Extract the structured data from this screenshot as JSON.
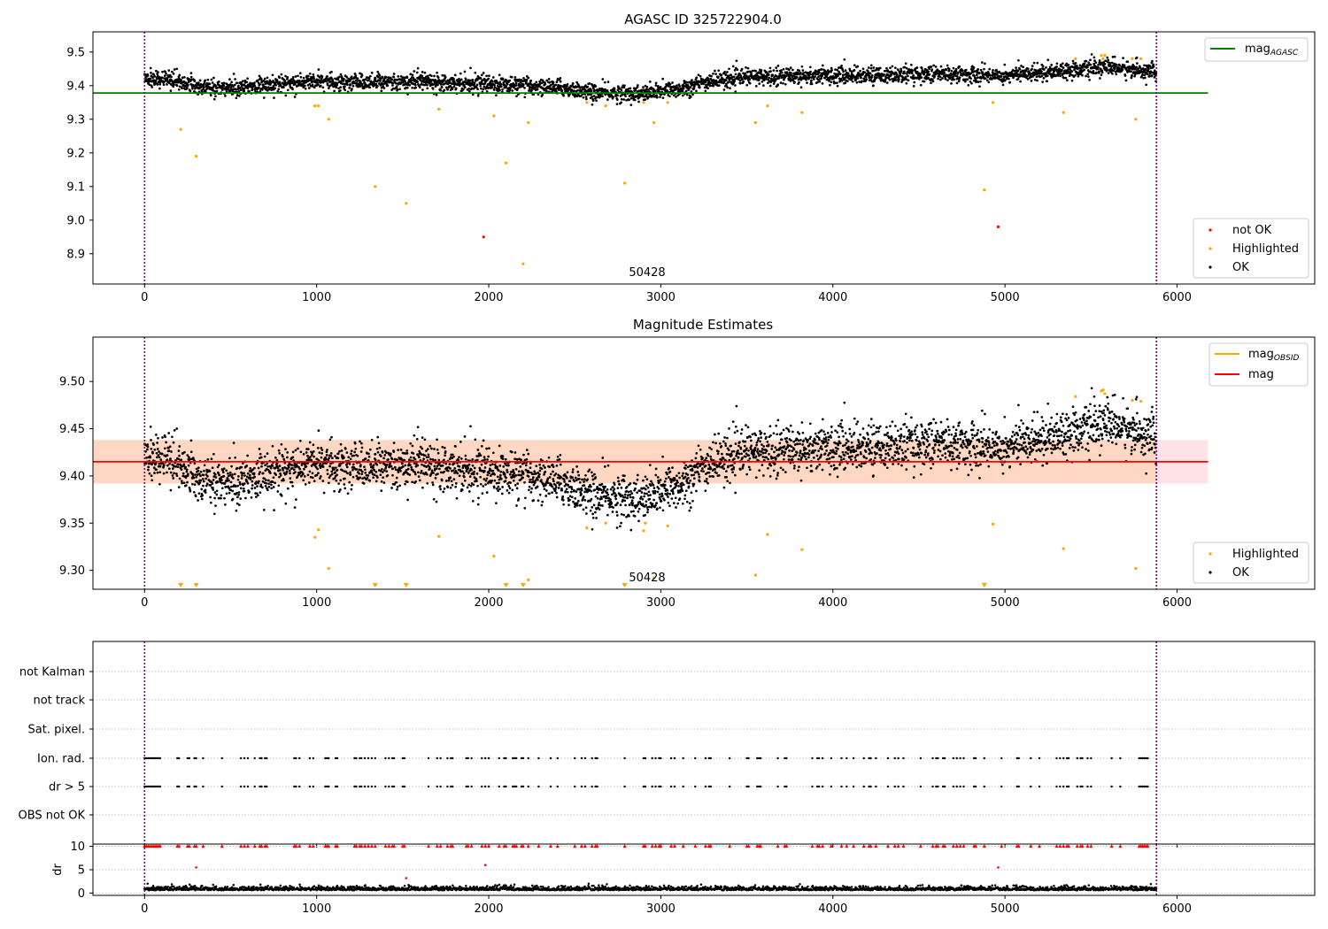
{
  "colors": {
    "ok": "#000000",
    "highlighted": "#ffa500",
    "not_ok": "#ff0000",
    "mag_agasc": "#008000",
    "mag": "#ff0000",
    "mag_obsid": "#ffa500",
    "band_inner": "#ffd7c2",
    "band_outer": "#ffe3e8",
    "boundary": "#800080",
    "grid": "#b0b0b0"
  },
  "chart_data": [
    {
      "id": "agasc",
      "type": "scatter",
      "title": "AGASC ID 325722904.0",
      "xlim": [
        -300,
        6800
      ],
      "ylim": [
        8.81,
        9.56
      ],
      "x_ticks": [
        0,
        1000,
        2000,
        3000,
        4000,
        5000,
        6000
      ],
      "y_ticks": [
        8.9,
        9.0,
        9.1,
        9.2,
        9.3,
        9.4,
        9.5
      ],
      "y_tick_labels": [
        "8.9",
        "9.0",
        "9.1",
        "9.2",
        "9.3",
        "9.4",
        "9.5"
      ],
      "obsid_label": {
        "text": "50428",
        "x": 2930
      },
      "vlines": [
        0,
        5880
      ],
      "hlines": [
        {
          "name": "mag_AGASC",
          "y": 9.378,
          "x0": -300,
          "x1": 6180
        }
      ],
      "legend_top": {
        "position": "top-right",
        "entries": [
          {
            "label": "mag",
            "sub": "AGASC",
            "kind": "line",
            "color_key": "mag_agasc"
          }
        ]
      },
      "legend_bottom": {
        "position": "bottom-right",
        "entries": [
          {
            "label": "not OK",
            "kind": "dot",
            "color_key": "not_ok"
          },
          {
            "label": "Highlighted",
            "kind": "dot",
            "color_key": "highlighted"
          },
          {
            "label": "OK",
            "kind": "dot",
            "color_key": "ok"
          }
        ]
      },
      "series": [
        {
          "name": "Highlighted",
          "kind": "points",
          "points": [
            [
              210,
              9.27
            ],
            [
              300,
              9.19
            ],
            [
              990,
              9.34
            ],
            [
              1010,
              9.34
            ],
            [
              1070,
              9.3
            ],
            [
              1340,
              9.1
            ],
            [
              1520,
              9.05
            ],
            [
              1710,
              9.33
            ],
            [
              2030,
              9.31
            ],
            [
              2100,
              9.17
            ],
            [
              2200,
              8.87
            ],
            [
              2230,
              9.29
            ],
            [
              2570,
              9.35
            ],
            [
              2680,
              9.34
            ],
            [
              2790,
              9.11
            ],
            [
              2900,
              9.35
            ],
            [
              2960,
              9.29
            ],
            [
              3040,
              9.35
            ],
            [
              3550,
              9.29
            ],
            [
              3620,
              9.34
            ],
            [
              3820,
              9.32
            ],
            [
              4880,
              9.09
            ],
            [
              4930,
              9.35
            ],
            [
              5340,
              9.32
            ],
            [
              5410,
              9.48
            ],
            [
              5560,
              9.49
            ],
            [
              5570,
              9.48
            ],
            [
              5580,
              9.49
            ],
            [
              5740,
              9.48
            ],
            [
              5760,
              9.3
            ],
            [
              5790,
              9.48
            ]
          ]
        },
        {
          "name": "not OK",
          "kind": "points",
          "points": [
            [
              1970,
              8.95
            ],
            [
              4960,
              8.98
            ]
          ]
        }
      ],
      "ok_series": {
        "mean_segments": [
          [
            0,
            9.425
          ],
          [
            200,
            9.41
          ],
          [
            400,
            9.39
          ],
          [
            800,
            9.405
          ],
          [
            1000,
            9.415
          ],
          [
            1300,
            9.41
          ],
          [
            1600,
            9.415
          ],
          [
            2000,
            9.405
          ],
          [
            2400,
            9.395
          ],
          [
            2600,
            9.38
          ],
          [
            2900,
            9.375
          ],
          [
            3100,
            9.39
          ],
          [
            3300,
            9.415
          ],
          [
            3500,
            9.425
          ],
          [
            3800,
            9.43
          ],
          [
            4200,
            9.43
          ],
          [
            4600,
            9.435
          ],
          [
            5000,
            9.43
          ],
          [
            5300,
            9.445
          ],
          [
            5600,
            9.455
          ],
          [
            5880,
            9.44
          ]
        ],
        "noise": 0.012
      }
    },
    {
      "id": "mag",
      "type": "scatter",
      "title": "Magnitude Estimates",
      "xlim": [
        -300,
        6800
      ],
      "ylim": [
        9.28,
        9.547
      ],
      "x_ticks": [
        0,
        1000,
        2000,
        3000,
        4000,
        5000,
        6000
      ],
      "y_ticks": [
        9.3,
        9.35,
        9.4,
        9.45,
        9.5
      ],
      "y_tick_labels": [
        "9.30",
        "9.35",
        "9.40",
        "9.45",
        "9.50"
      ],
      "obsid_label": {
        "text": "50428",
        "x": 2930
      },
      "vlines": [
        0,
        5880
      ],
      "hlines": [
        {
          "name": "mag",
          "y": 9.415,
          "x0": -300,
          "x1": 6180
        }
      ],
      "band": {
        "x0": -300,
        "x1": 6180,
        "outer": [
          9.392,
          9.438
        ],
        "inner": [
          9.392,
          9.438
        ]
      },
      "legend_top": {
        "position": "top-right",
        "entries": [
          {
            "label": "mag",
            "sub": "OBSID",
            "kind": "line",
            "color_key": "mag_obsid"
          },
          {
            "label": "mag",
            "kind": "line",
            "color_key": "mag"
          }
        ]
      },
      "legend_bottom": {
        "position": "bottom-right",
        "entries": [
          {
            "label": "Highlighted",
            "kind": "dot",
            "color_key": "highlighted"
          },
          {
            "label": "OK",
            "kind": "dot",
            "color_key": "ok"
          }
        ]
      },
      "series": [
        {
          "name": "Highlighted",
          "kind": "points",
          "points": [
            [
              990,
              9.335
            ],
            [
              1010,
              9.343
            ],
            [
              1070,
              9.302
            ],
            [
              1710,
              9.336
            ],
            [
              2030,
              9.315
            ],
            [
              2230,
              9.29
            ],
            [
              2570,
              9.345
            ],
            [
              2680,
              9.35
            ],
            [
              2900,
              9.342
            ],
            [
              2910,
              9.35
            ],
            [
              2960,
              9.292
            ],
            [
              3040,
              9.347
            ],
            [
              3550,
              9.295
            ],
            [
              3620,
              9.338
            ],
            [
              3820,
              9.322
            ],
            [
              4930,
              9.349
            ],
            [
              5340,
              9.323
            ],
            [
              5410,
              9.484
            ],
            [
              5560,
              9.49
            ],
            [
              5570,
              9.491
            ],
            [
              5580,
              9.487
            ],
            [
              5740,
              9.48
            ],
            [
              5760,
              9.302
            ],
            [
              5790,
              9.479
            ]
          ]
        },
        {
          "name": "Highlighted (below axis)",
          "kind": "triangles",
          "x": [
            210,
            300,
            1340,
            1520,
            2100,
            2200,
            2790,
            4880
          ]
        }
      ],
      "ok_series": {
        "mean_segments": [
          [
            0,
            9.425
          ],
          [
            200,
            9.41
          ],
          [
            400,
            9.39
          ],
          [
            800,
            9.405
          ],
          [
            1000,
            9.415
          ],
          [
            1300,
            9.41
          ],
          [
            1600,
            9.415
          ],
          [
            2000,
            9.405
          ],
          [
            2400,
            9.395
          ],
          [
            2600,
            9.38
          ],
          [
            2900,
            9.375
          ],
          [
            3100,
            9.39
          ],
          [
            3300,
            9.415
          ],
          [
            3500,
            9.425
          ],
          [
            3800,
            9.43
          ],
          [
            4200,
            9.43
          ],
          [
            4600,
            9.435
          ],
          [
            5000,
            9.43
          ],
          [
            5300,
            9.445
          ],
          [
            5600,
            9.455
          ],
          [
            5880,
            9.44
          ]
        ],
        "noise": 0.012
      }
    },
    {
      "id": "flags",
      "type": "scatter",
      "xlim": [
        -300,
        6800
      ],
      "x_ticks": [
        0,
        1000,
        2000,
        3000,
        4000,
        5000,
        6000
      ],
      "vlines": [
        0,
        5880
      ],
      "categories": [
        "not Kalman",
        "not track",
        "Sat. pixel.",
        "Ion. rad.",
        "dr > 5",
        "OBS not OK"
      ],
      "flag_x": [
        0,
        10,
        20,
        30,
        40,
        50,
        60,
        70,
        80,
        90,
        190,
        200,
        250,
        260,
        290,
        300,
        340,
        450,
        560,
        580,
        600,
        640,
        670,
        680,
        700,
        710,
        870,
        880,
        900,
        960,
        980,
        1050,
        1060,
        1070,
        1110,
        1120,
        1220,
        1230,
        1250,
        1260,
        1280,
        1300,
        1320,
        1340,
        1400,
        1420,
        1440,
        1450,
        1500,
        1510,
        1650,
        1700,
        1720,
        1760,
        1780,
        1790,
        1870,
        1880,
        1900,
        1960,
        1980,
        2000,
        2060,
        2090,
        2100,
        2140,
        2150,
        2160,
        2190,
        2200,
        2230,
        2290,
        2360,
        2400,
        2500,
        2540,
        2560,
        2600,
        2620,
        2630,
        2790,
        2900,
        2910,
        2950,
        2970,
        2990,
        3000,
        3060,
        3080,
        3130,
        3200,
        3260,
        3280,
        3290,
        3400,
        3500,
        3510,
        3560,
        3570,
        3580,
        3680,
        3720,
        3730,
        3880,
        3910,
        3920,
        3940,
        3990,
        4050,
        4080,
        4120,
        4180,
        4210,
        4220,
        4250,
        4320,
        4360,
        4380,
        4410,
        4510,
        4580,
        4600,
        4610,
        4640,
        4650,
        4700,
        4720,
        4740,
        4760,
        4820,
        4830,
        4880,
        4980,
        5070,
        5080,
        5150,
        5200,
        5300,
        5320,
        5340,
        5360,
        5370,
        5420,
        5440,
        5450,
        5480,
        5500,
        5620,
        5670,
        5780,
        5790,
        5800,
        5810,
        5820,
        5830
      ]
    },
    {
      "id": "dr",
      "type": "scatter",
      "ylabel": "dr",
      "xlim": [
        -300,
        6800
      ],
      "ylim": [
        -0.5,
        10.5
      ],
      "x_ticks": [
        0,
        1000,
        2000,
        3000,
        4000,
        5000,
        6000
      ],
      "x_tick_labels": [
        "0",
        "1000",
        "2000",
        "3000",
        "4000",
        "5000",
        "6000"
      ],
      "y_ticks": [
        0,
        5,
        10
      ],
      "y_tick_labels": [
        "0",
        "5",
        "10"
      ],
      "vlines": [
        0,
        5880
      ],
      "series": [
        {
          "name": "dr capped",
          "kind": "triangles-red",
          "y": 10
        },
        {
          "name": "dr outliers",
          "kind": "points",
          "points": [
            [
              300,
              5.5
            ],
            [
              1520,
              3.2
            ],
            [
              1980,
              6.0
            ],
            [
              4960,
              5.5
            ]
          ]
        }
      ],
      "dr_ok": {
        "mean": 0.8,
        "noise": 0.45
      }
    }
  ]
}
